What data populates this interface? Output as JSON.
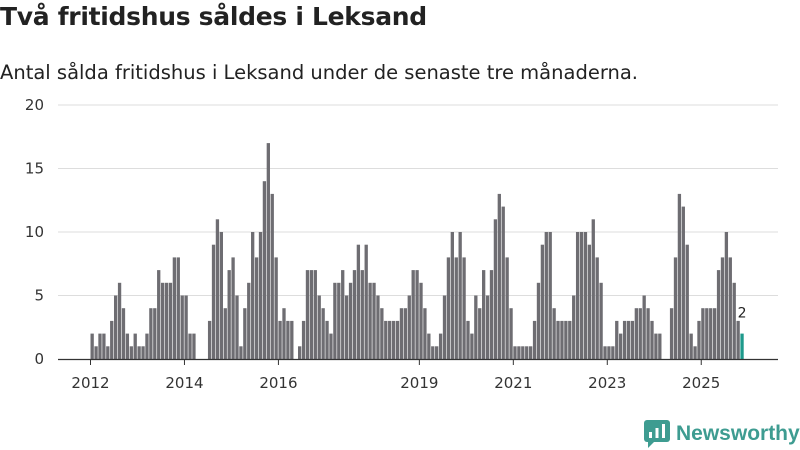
{
  "title": "Två fritidshus såldes i Leksand",
  "subtitle": "Antal sålda fritidshus i Leksand under de senaste tre månaderna.",
  "brand": {
    "name": "Newsworthy",
    "color": "#3e9c91"
  },
  "colors": {
    "bar": "#6e6d72",
    "highlight": "#1e9a8c",
    "grid": "#dddddd",
    "axis": "#333333"
  },
  "chart_data": {
    "type": "bar",
    "title": "Två fritidshus såldes i Leksand",
    "subtitle": "Antal sålda fritidshus i Leksand under de senaste tre månaderna.",
    "xlabel": "",
    "ylabel": "",
    "ylim": [
      0,
      20
    ],
    "yticks": [
      0,
      5,
      10,
      15,
      20
    ],
    "grid": true,
    "x_start": "2012-01",
    "xticks": [
      {
        "label": "2012",
        "year": 2012
      },
      {
        "label": "2014",
        "year": 2014
      },
      {
        "label": "2016",
        "year": 2016
      },
      {
        "label": "2019",
        "year": 2019
      },
      {
        "label": "2021",
        "year": 2021
      },
      {
        "label": "2023",
        "year": 2023
      },
      {
        "label": "2025",
        "year": 2025
      }
    ],
    "values": [
      2,
      1,
      2,
      2,
      1,
      3,
      5,
      6,
      4,
      2,
      1,
      2,
      1,
      1,
      2,
      4,
      4,
      7,
      6,
      6,
      6,
      8,
      8,
      5,
      5,
      2,
      2,
      0,
      0,
      0,
      3,
      9,
      11,
      10,
      4,
      7,
      8,
      5,
      1,
      4,
      6,
      10,
      8,
      10,
      14,
      17,
      13,
      8,
      3,
      4,
      3,
      3,
      0,
      1,
      3,
      7,
      7,
      7,
      5,
      4,
      3,
      2,
      6,
      6,
      7,
      5,
      6,
      7,
      9,
      7,
      9,
      6,
      6,
      5,
      4,
      3,
      3,
      3,
      3,
      4,
      4,
      5,
      7,
      7,
      6,
      4,
      2,
      1,
      1,
      2,
      5,
      8,
      10,
      8,
      10,
      8,
      3,
      2,
      5,
      4,
      7,
      5,
      7,
      11,
      13,
      12,
      8,
      4,
      1,
      1,
      1,
      1,
      1,
      3,
      6,
      9,
      10,
      10,
      4,
      3,
      3,
      3,
      3,
      5,
      10,
      10,
      10,
      9,
      11,
      8,
      6,
      1,
      1,
      1,
      3,
      2,
      3,
      3,
      3,
      4,
      4,
      5,
      4,
      3,
      2,
      2,
      0,
      0,
      4,
      8,
      13,
      12,
      9,
      2,
      1,
      3,
      4,
      4,
      4,
      4,
      7,
      8,
      10,
      8,
      6,
      3,
      2
    ],
    "last_label": "2",
    "highlight_last": true
  }
}
